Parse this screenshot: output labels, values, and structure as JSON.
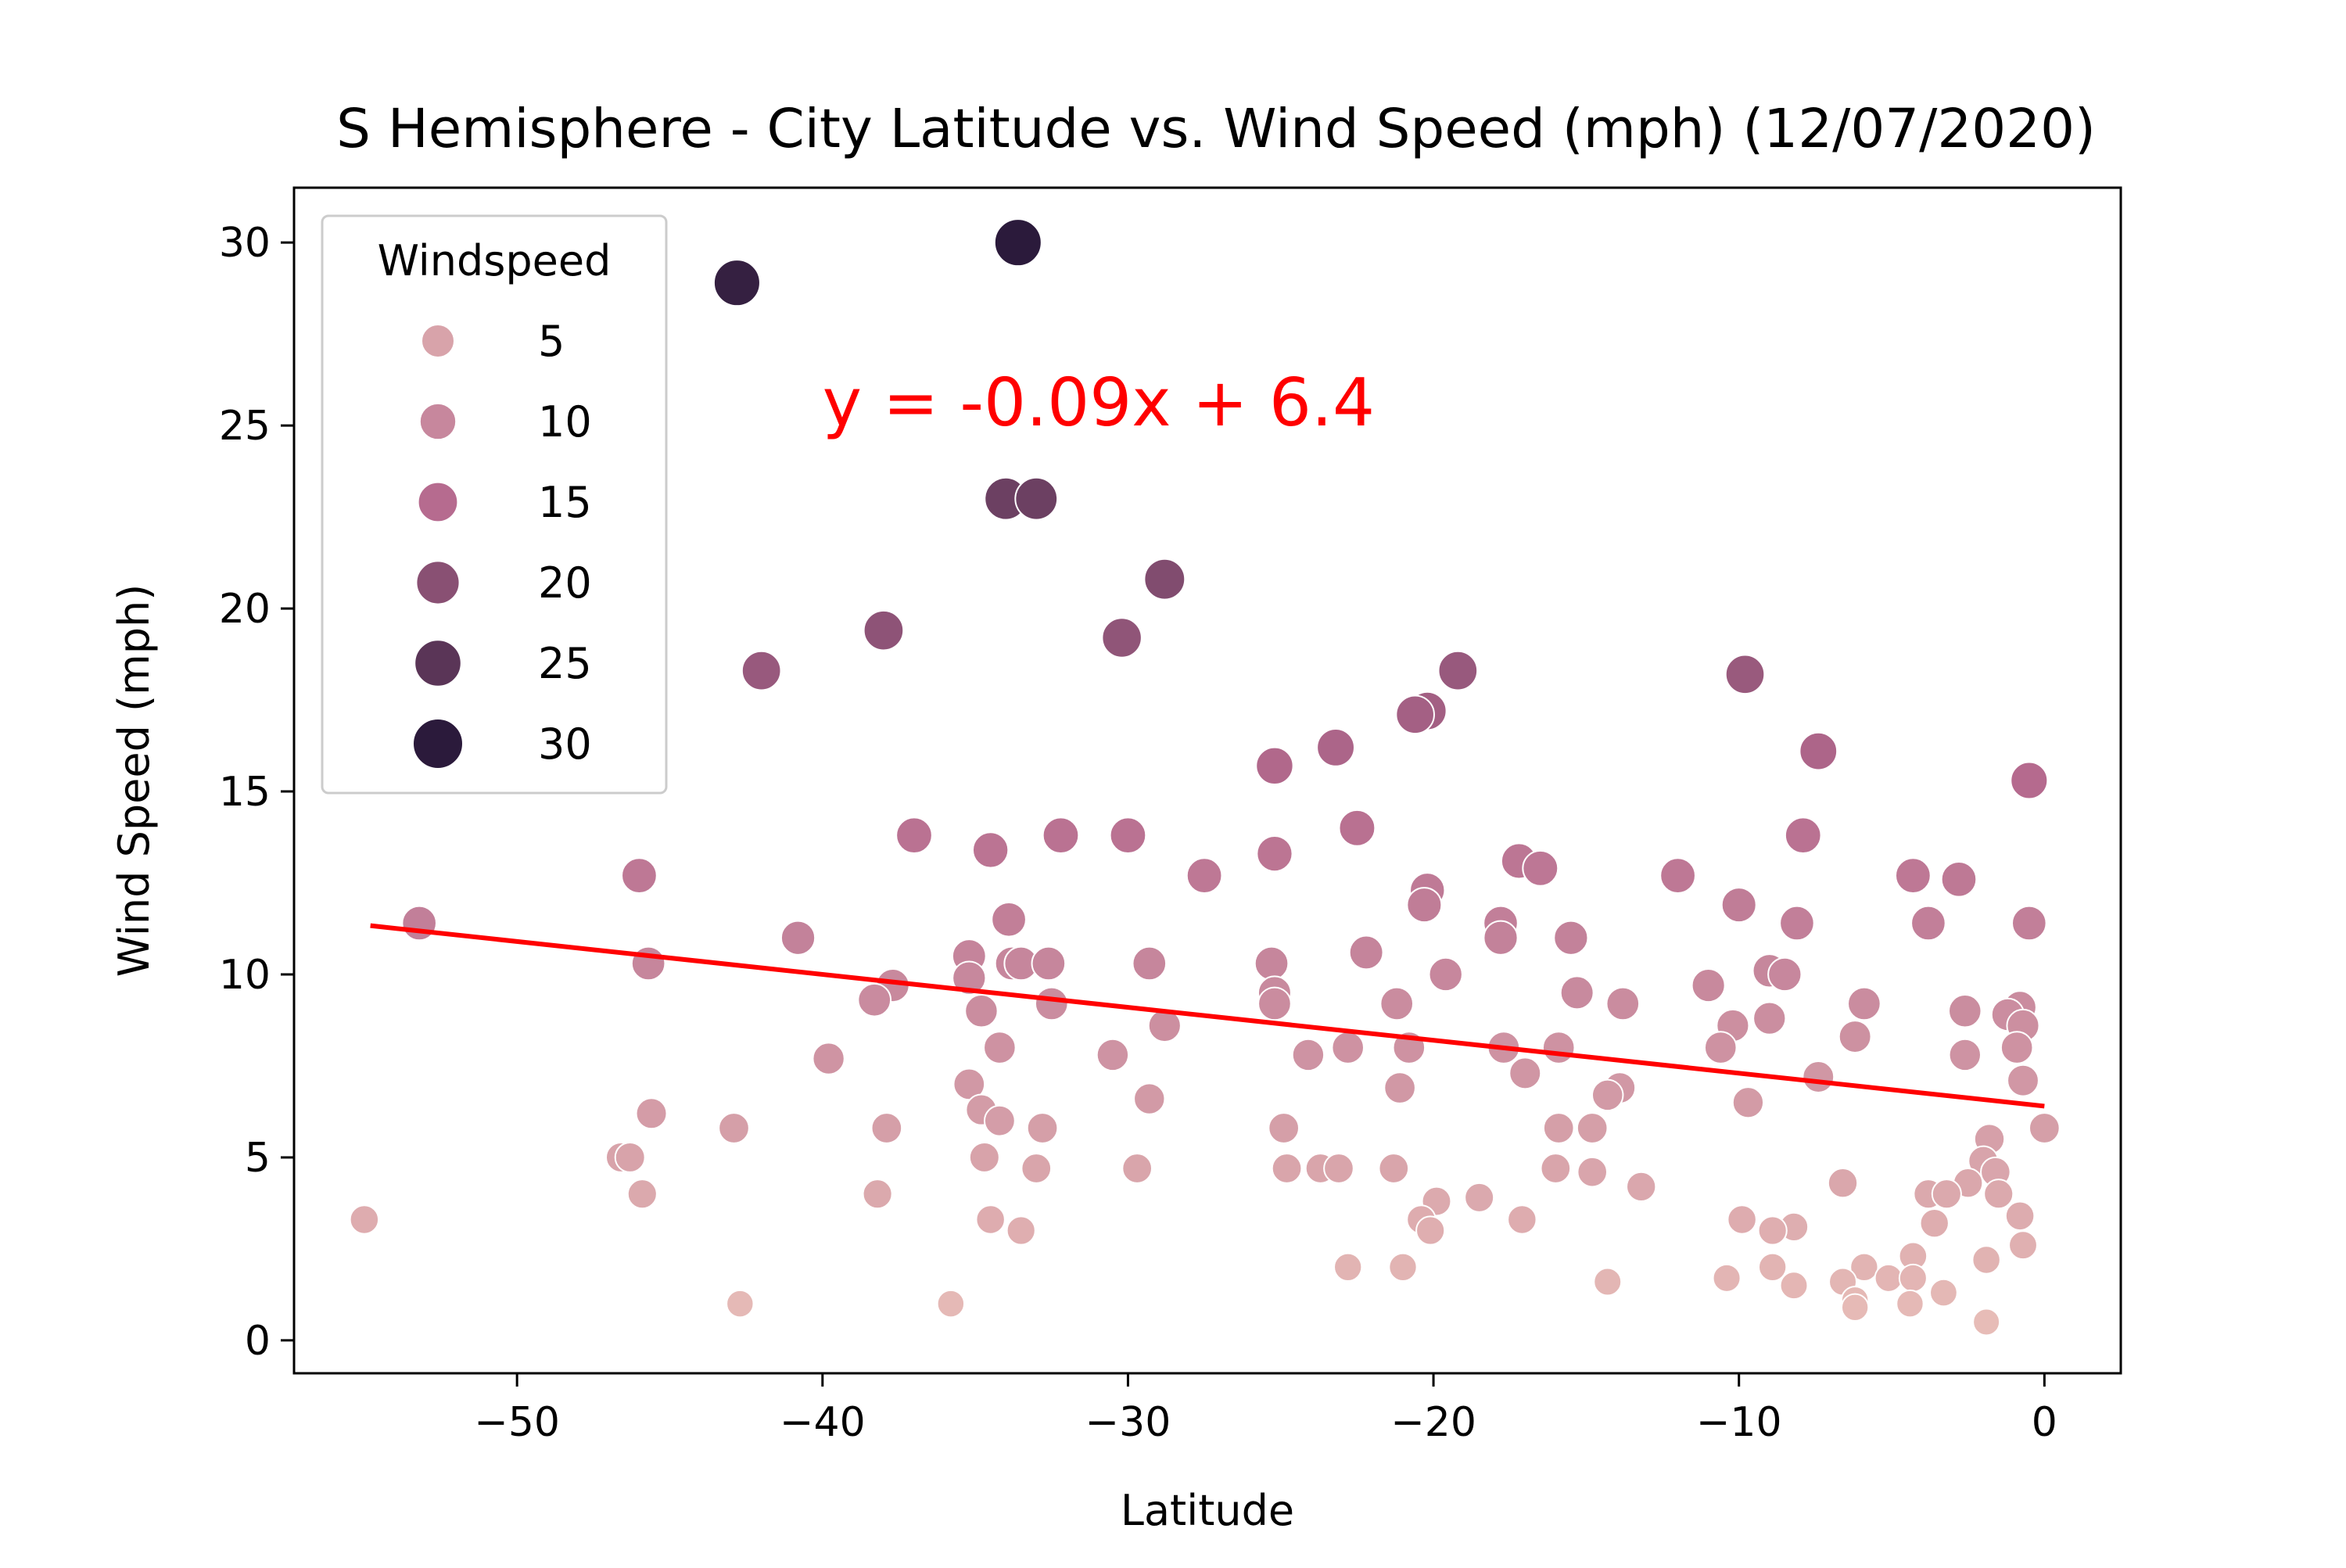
{
  "chart_data": {
    "type": "scatter",
    "title": "S Hemisphere - City Latitude vs. Wind Speed (mph) (12/07/2020)",
    "xlabel": "Latitude",
    "ylabel": "Wind Speed (mph)",
    "xlim": [
      -57.3,
      2.5
    ],
    "ylim": [
      -0.9,
      31.5
    ],
    "xticks": [
      -50,
      -40,
      -30,
      -20,
      -10,
      0
    ],
    "xtick_labels": [
      "−50",
      "−40",
      "−30",
      "−20",
      "−10",
      "0"
    ],
    "yticks": [
      0,
      5,
      10,
      15,
      20,
      25,
      30
    ],
    "ytick_labels": [
      "0",
      "5",
      "10",
      "15",
      "20",
      "25",
      "30"
    ],
    "grid": false,
    "legend": {
      "title": "Windspeed",
      "position": "top-left",
      "entries": [
        {
          "label": "5",
          "value": 5
        },
        {
          "label": "10",
          "value": 10
        },
        {
          "label": "15",
          "value": 15
        },
        {
          "label": "20",
          "value": 20
        },
        {
          "label": "25",
          "value": 25
        },
        {
          "label": "30",
          "value": 30
        }
      ]
    },
    "regression": {
      "equation": "y = -0.09x + 6.4",
      "slope": -0.09,
      "intercept": 6.4,
      "x_range": [
        -54.8,
        0
      ],
      "color": "#ff0000",
      "annotation_at": [
        -40,
        25
      ]
    },
    "color_scale": {
      "low": "#e7bcb7",
      "mid": "#b56a8e",
      "high": "#2b1a3b",
      "vmin": 0.5,
      "vmax": 30
    },
    "series": [
      {
        "name": "Windspeed",
        "points": [
          {
            "x": -33.6,
            "y": 30.0
          },
          {
            "x": -42.8,
            "y": 28.9
          },
          {
            "x": -34.0,
            "y": 23.0
          },
          {
            "x": -33.0,
            "y": 23.0
          },
          {
            "x": -28.8,
            "y": 20.8
          },
          {
            "x": -38.0,
            "y": 19.4
          },
          {
            "x": -30.2,
            "y": 19.2
          },
          {
            "x": -42.0,
            "y": 18.3
          },
          {
            "x": -19.2,
            "y": 18.3
          },
          {
            "x": -9.8,
            "y": 18.2
          },
          {
            "x": -20.2,
            "y": 17.2
          },
          {
            "x": -20.6,
            "y": 17.1
          },
          {
            "x": -7.4,
            "y": 16.1
          },
          {
            "x": -23.2,
            "y": 16.2
          },
          {
            "x": -25.2,
            "y": 15.7
          },
          {
            "x": -0.5,
            "y": 15.3
          },
          {
            "x": -22.5,
            "y": 14.0
          },
          {
            "x": -37.0,
            "y": 13.8
          },
          {
            "x": -32.2,
            "y": 13.8
          },
          {
            "x": -30.0,
            "y": 13.8
          },
          {
            "x": -7.9,
            "y": 13.8
          },
          {
            "x": -34.5,
            "y": 13.4
          },
          {
            "x": -25.2,
            "y": 13.3
          },
          {
            "x": -17.2,
            "y": 13.1
          },
          {
            "x": -16.5,
            "y": 12.9
          },
          {
            "x": -46.0,
            "y": 12.7
          },
          {
            "x": -27.5,
            "y": 12.7
          },
          {
            "x": -12.0,
            "y": 12.7
          },
          {
            "x": -4.3,
            "y": 12.7
          },
          {
            "x": -2.8,
            "y": 12.6
          },
          {
            "x": -20.2,
            "y": 12.3
          },
          {
            "x": -20.3,
            "y": 11.9
          },
          {
            "x": -10.0,
            "y": 11.9
          },
          {
            "x": -33.9,
            "y": 11.5
          },
          {
            "x": -53.2,
            "y": 11.4
          },
          {
            "x": -17.8,
            "y": 11.4
          },
          {
            "x": -8.1,
            "y": 11.4
          },
          {
            "x": -3.8,
            "y": 11.4
          },
          {
            "x": -0.5,
            "y": 11.4
          },
          {
            "x": -17.8,
            "y": 11.0
          },
          {
            "x": -40.8,
            "y": 11.0
          },
          {
            "x": -15.5,
            "y": 11.0
          },
          {
            "x": -22.2,
            "y": 10.6
          },
          {
            "x": -35.2,
            "y": 10.5
          },
          {
            "x": -45.7,
            "y": 10.3
          },
          {
            "x": -33.8,
            "y": 10.3
          },
          {
            "x": -33.5,
            "y": 10.3
          },
          {
            "x": -32.6,
            "y": 10.3
          },
          {
            "x": -29.3,
            "y": 10.3
          },
          {
            "x": -25.3,
            "y": 10.3
          },
          {
            "x": -9.0,
            "y": 10.1
          },
          {
            "x": -8.5,
            "y": 10.0
          },
          {
            "x": -19.6,
            "y": 10.0
          },
          {
            "x": -35.2,
            "y": 9.9
          },
          {
            "x": -37.7,
            "y": 9.7
          },
          {
            "x": -11.0,
            "y": 9.7
          },
          {
            "x": -25.2,
            "y": 9.5
          },
          {
            "x": -15.3,
            "y": 9.5
          },
          {
            "x": -38.3,
            "y": 9.3
          },
          {
            "x": -32.5,
            "y": 9.2
          },
          {
            "x": -25.2,
            "y": 9.2
          },
          {
            "x": -21.2,
            "y": 9.2
          },
          {
            "x": -13.8,
            "y": 9.2
          },
          {
            "x": -5.9,
            "y": 9.2
          },
          {
            "x": -0.8,
            "y": 9.1
          },
          {
            "x": -34.8,
            "y": 9.0
          },
          {
            "x": -2.6,
            "y": 9.0
          },
          {
            "x": -1.2,
            "y": 8.9
          },
          {
            "x": -9.0,
            "y": 8.8
          },
          {
            "x": -10.2,
            "y": 8.6
          },
          {
            "x": -28.8,
            "y": 8.6
          },
          {
            "x": -0.7,
            "y": 8.6
          },
          {
            "x": -6.2,
            "y": 8.3
          },
          {
            "x": -34.2,
            "y": 8.0
          },
          {
            "x": -22.8,
            "y": 8.0
          },
          {
            "x": -20.8,
            "y": 8.0
          },
          {
            "x": -17.7,
            "y": 8.0
          },
          {
            "x": -15.9,
            "y": 8.0
          },
          {
            "x": -10.6,
            "y": 8.0
          },
          {
            "x": -0.9,
            "y": 8.0
          },
          {
            "x": -30.5,
            "y": 7.8
          },
          {
            "x": -24.1,
            "y": 7.8
          },
          {
            "x": -2.6,
            "y": 7.8
          },
          {
            "x": -39.8,
            "y": 7.7
          },
          {
            "x": -17.0,
            "y": 7.3
          },
          {
            "x": -7.4,
            "y": 7.2
          },
          {
            "x": -0.7,
            "y": 7.1
          },
          {
            "x": -35.2,
            "y": 7.0
          },
          {
            "x": -21.1,
            "y": 6.9
          },
          {
            "x": -13.9,
            "y": 6.9
          },
          {
            "x": -14.3,
            "y": 6.7
          },
          {
            "x": -29.3,
            "y": 6.6
          },
          {
            "x": -9.7,
            "y": 6.5
          },
          {
            "x": -34.8,
            "y": 6.3
          },
          {
            "x": -45.6,
            "y": 6.2
          },
          {
            "x": -34.2,
            "y": 6.0
          },
          {
            "x": -42.9,
            "y": 5.8
          },
          {
            "x": -37.9,
            "y": 5.8
          },
          {
            "x": -32.8,
            "y": 5.8
          },
          {
            "x": -24.9,
            "y": 5.8
          },
          {
            "x": -15.9,
            "y": 5.8
          },
          {
            "x": -14.8,
            "y": 5.8
          },
          {
            "x": 0.0,
            "y": 5.8
          },
          {
            "x": -1.8,
            "y": 5.5
          },
          {
            "x": -46.6,
            "y": 5.0
          },
          {
            "x": -46.3,
            "y": 5.0
          },
          {
            "x": -34.7,
            "y": 5.0
          },
          {
            "x": -2.0,
            "y": 4.9
          },
          {
            "x": -24.8,
            "y": 4.7
          },
          {
            "x": -23.7,
            "y": 4.7
          },
          {
            "x": -23.1,
            "y": 4.7
          },
          {
            "x": -21.3,
            "y": 4.7
          },
          {
            "x": -33.0,
            "y": 4.7
          },
          {
            "x": -29.7,
            "y": 4.7
          },
          {
            "x": -16.0,
            "y": 4.7
          },
          {
            "x": -14.8,
            "y": 4.6
          },
          {
            "x": -1.6,
            "y": 4.6
          },
          {
            "x": -6.6,
            "y": 4.3
          },
          {
            "x": -2.5,
            "y": 4.3
          },
          {
            "x": -13.2,
            "y": 4.2
          },
          {
            "x": -3.8,
            "y": 4.0
          },
          {
            "x": -3.2,
            "y": 4.0
          },
          {
            "x": -45.9,
            "y": 4.0
          },
          {
            "x": -38.2,
            "y": 4.0
          },
          {
            "x": -1.5,
            "y": 4.0
          },
          {
            "x": -19.9,
            "y": 3.8
          },
          {
            "x": -18.5,
            "y": 3.9
          },
          {
            "x": -55.0,
            "y": 3.3
          },
          {
            "x": -34.5,
            "y": 3.3
          },
          {
            "x": -20.4,
            "y": 3.3
          },
          {
            "x": -17.1,
            "y": 3.3
          },
          {
            "x": -9.9,
            "y": 3.3
          },
          {
            "x": -0.8,
            "y": 3.4
          },
          {
            "x": -3.6,
            "y": 3.2
          },
          {
            "x": -8.2,
            "y": 3.1
          },
          {
            "x": -8.9,
            "y": 3.0
          },
          {
            "x": -33.5,
            "y": 3.0
          },
          {
            "x": -20.1,
            "y": 3.0
          },
          {
            "x": -0.7,
            "y": 2.6
          },
          {
            "x": -4.3,
            "y": 2.3
          },
          {
            "x": -1.9,
            "y": 2.2
          },
          {
            "x": -22.8,
            "y": 2.0
          },
          {
            "x": -21.0,
            "y": 2.0
          },
          {
            "x": -8.9,
            "y": 2.0
          },
          {
            "x": -5.9,
            "y": 2.0
          },
          {
            "x": -5.1,
            "y": 1.7
          },
          {
            "x": -10.4,
            "y": 1.7
          },
          {
            "x": -4.3,
            "y": 1.7
          },
          {
            "x": -6.6,
            "y": 1.6
          },
          {
            "x": -14.3,
            "y": 1.6
          },
          {
            "x": -8.2,
            "y": 1.5
          },
          {
            "x": -3.3,
            "y": 1.3
          },
          {
            "x": -6.2,
            "y": 1.1
          },
          {
            "x": -42.7,
            "y": 1.0
          },
          {
            "x": -35.8,
            "y": 1.0
          },
          {
            "x": -4.4,
            "y": 1.0
          },
          {
            "x": -6.2,
            "y": 0.9
          },
          {
            "x": -1.9,
            "y": 0.5
          }
        ]
      }
    ]
  }
}
